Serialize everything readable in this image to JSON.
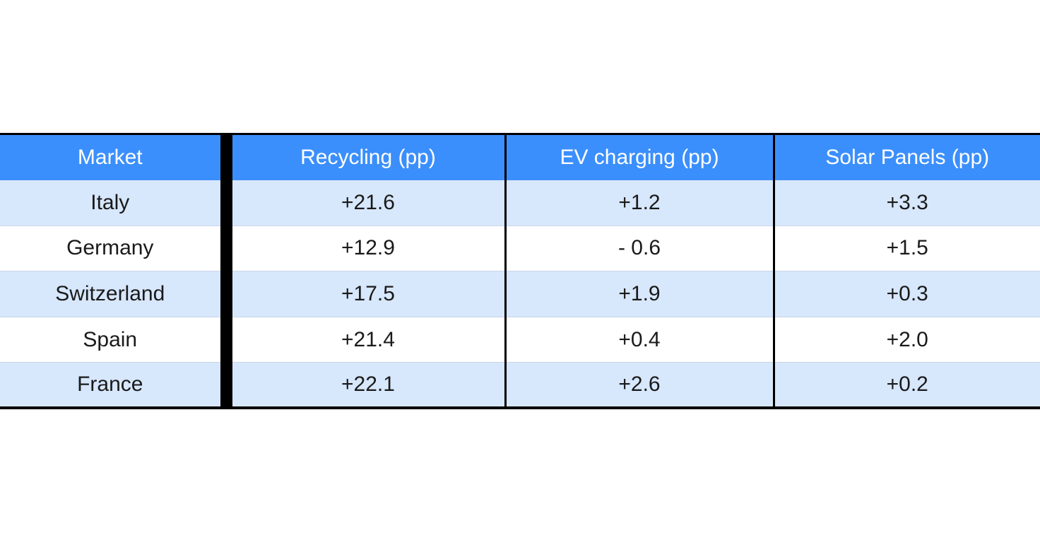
{
  "colors": {
    "header_bg": "#3b8ffc",
    "row_odd_bg": "#d7e7fc",
    "row_even_bg": "#ffffff",
    "header_text": "#ffffff",
    "cell_text": "#1a1a1a",
    "divider": "#000000"
  },
  "chart_data": {
    "type": "table",
    "columns": [
      "Market",
      "Recycling (pp)",
      "EV charging (pp)",
      "Solar Panels (pp)"
    ],
    "rows": [
      [
        "Italy",
        "+21.6",
        "+1.2",
        "+3.3"
      ],
      [
        "Germany",
        "+12.9",
        "- 0.6",
        "+1.5"
      ],
      [
        "Switzerland",
        "+17.5",
        "+1.9",
        "+0.3"
      ],
      [
        "Spain",
        "+21.4",
        "+0.4",
        "+2.0"
      ],
      [
        "France",
        "+22.1",
        "+2.6",
        "+0.2"
      ]
    ]
  }
}
